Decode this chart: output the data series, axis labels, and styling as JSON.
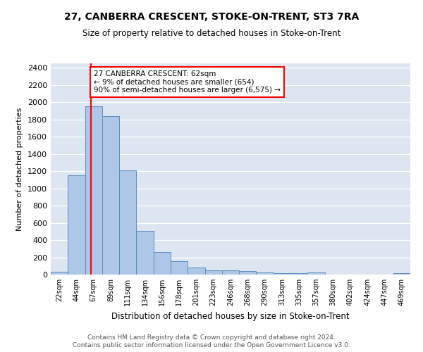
{
  "title": "27, CANBERRA CRESCENT, STOKE-ON-TRENT, ST3 7RA",
  "subtitle": "Size of property relative to detached houses in Stoke-on-Trent",
  "xlabel": "Distribution of detached houses by size in Stoke-on-Trent",
  "ylabel": "Number of detached properties",
  "footer1": "Contains HM Land Registry data © Crown copyright and database right 2024.",
  "footer2": "Contains public sector information licensed under the Open Government Licence v3.0.",
  "bar_labels": [
    "22sqm",
    "44sqm",
    "67sqm",
    "89sqm",
    "111sqm",
    "134sqm",
    "156sqm",
    "178sqm",
    "201sqm",
    "223sqm",
    "246sqm",
    "268sqm",
    "290sqm",
    "313sqm",
    "335sqm",
    "357sqm",
    "380sqm",
    "402sqm",
    "424sqm",
    "447sqm",
    "469sqm"
  ],
  "bar_values": [
    30,
    1150,
    1950,
    1840,
    1210,
    510,
    265,
    155,
    80,
    50,
    45,
    40,
    22,
    20,
    15,
    22,
    0,
    0,
    0,
    0,
    20
  ],
  "bar_color": "#aec6e8",
  "bar_edge_color": "#5a8fc0",
  "background_color": "#dde6f0",
  "grid_color": "#ffffff",
  "property_label": "27 CANBERRA CRESCENT: 62sqm",
  "pct_smaller": "9% of detached houses are smaller (654)",
  "pct_larger": "90% of semi-detached houses are larger (6,575) →",
  "annotation_arrow": "←",
  "vline_x_index": 1.85,
  "ylim": [
    0,
    2450
  ],
  "yticks": [
    0,
    200,
    400,
    600,
    800,
    1000,
    1200,
    1400,
    1600,
    1800,
    2000,
    2200,
    2400
  ]
}
